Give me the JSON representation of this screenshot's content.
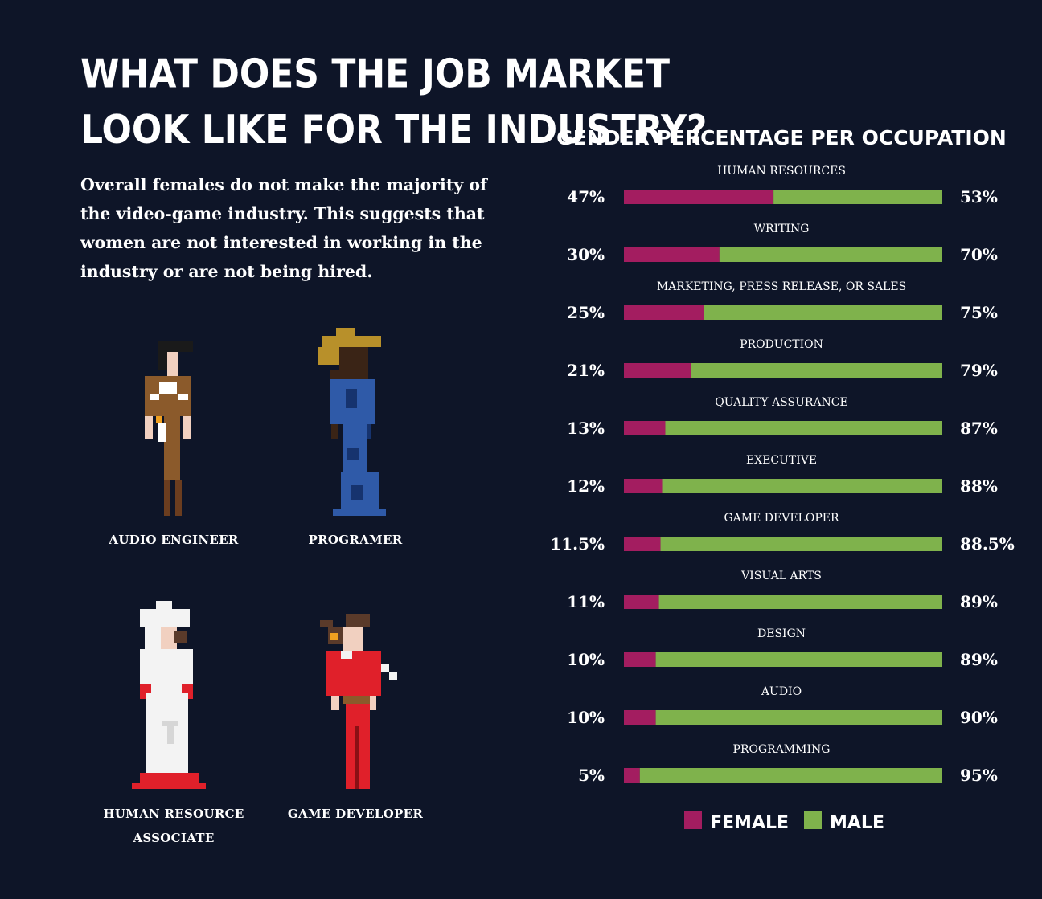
{
  "header": {
    "title_lines": [
      "WHAT DOES THE JOB MARKET",
      "LOOK LIKE FOR THE INDUSTRY?"
    ],
    "intro_lines": [
      "Overall females do not make the majority of",
      "the video-game industry. This suggests that",
      "women are not interested in working in the",
      "industry or are not being hired."
    ]
  },
  "characters": [
    {
      "label_lines": [
        "AUDIO ENGINEER"
      ],
      "icon": "audio-engineer-pixel-figure"
    },
    {
      "label_lines": [
        "PROGRAMER"
      ],
      "icon": "programmer-pixel-figure"
    },
    {
      "label_lines": [
        "HUMAN RESOURCE",
        "ASSOCIATE"
      ],
      "icon": "hr-associate-pixel-figure"
    },
    {
      "label_lines": [
        "GAME DEVELOPER"
      ],
      "icon": "game-developer-pixel-figure"
    }
  ],
  "chart_data": {
    "type": "bar",
    "title": "GENDER PERCENTAGE PER OCCUPATION",
    "categories": [
      "HUMAN RESOURCES",
      "WRITING",
      "MARKETING, PRESS RELEASE, OR SALES",
      "PRODUCTION",
      "QUALITY ASSURANCE",
      "EXECUTIVE",
      "GAME DEVELOPER",
      "VISUAL ARTS",
      "DESIGN",
      "AUDIO",
      "PROGRAMMING"
    ],
    "series": [
      {
        "name": "FEMALE",
        "values": [
          47,
          30,
          25,
          21,
          13,
          12,
          11.5,
          11,
          10,
          10,
          5
        ],
        "labels": [
          "47%",
          "30%",
          "25%",
          "21%",
          "13%",
          "12%",
          "11.5%",
          "11%",
          "10%",
          "10%",
          "5%"
        ],
        "color": "#a31d60"
      },
      {
        "name": "MALE",
        "values": [
          53,
          70,
          75,
          79,
          87,
          88,
          88.5,
          89,
          89,
          90,
          95
        ],
        "labels": [
          "53%",
          "70%",
          "75%",
          "79%",
          "87%",
          "88%",
          "88.5%",
          "89%",
          "89%",
          "90%",
          "95%"
        ],
        "color": "#7fb24c"
      }
    ],
    "stacked": true,
    "orientation": "horizontal",
    "xlim": [
      0,
      100
    ],
    "legend": "bottom"
  },
  "colors": {
    "background": "#0e1528",
    "text": "#ffffff"
  }
}
